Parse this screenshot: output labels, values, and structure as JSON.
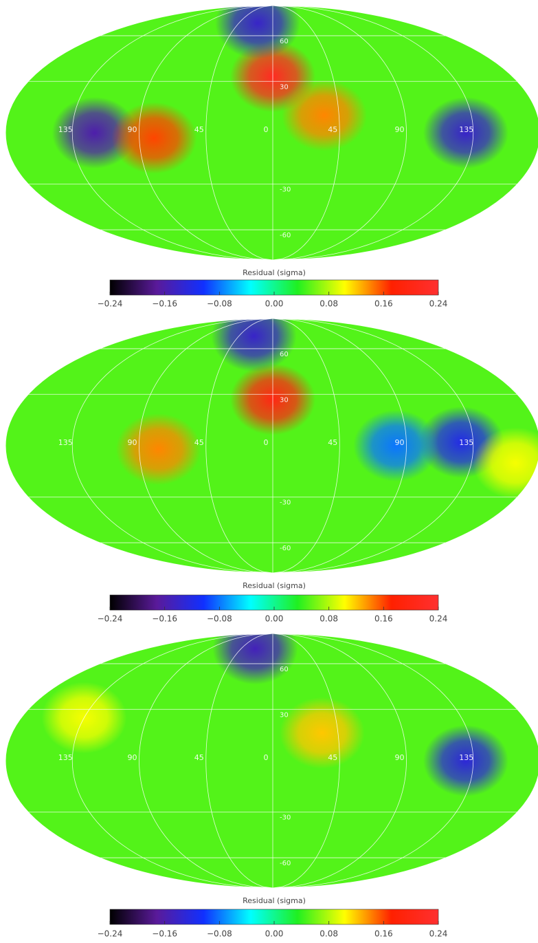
{
  "chart_data": [
    {
      "type": "skymap",
      "grid": true,
      "background": 0.05,
      "xlim": [
        180,
        -180
      ],
      "ylim": [
        -90,
        90
      ],
      "xticks": [
        135,
        90,
        45,
        0,
        {
          "value": -45,
          "label": "45"
        },
        {
          "value": -90,
          "label": "90"
        },
        {
          "value": -135,
          "label": "135"
        }
      ],
      "yticks": [
        60,
        30,
        -30,
        -60
      ],
      "features": [
        {
          "lon": 120,
          "lat": 0,
          "value": -0.16
        },
        {
          "lon": 80,
          "lat": -3,
          "value": 0.16
        },
        {
          "lon": 0,
          "lat": 33,
          "value": 0.22
        },
        {
          "lon": -35,
          "lat": 10,
          "value": 0.14
        },
        {
          "lon": 20,
          "lat": 70,
          "value": -0.14
        },
        {
          "lon": -130,
          "lat": 0,
          "value": -0.14
        }
      ],
      "colorbar": {
        "label": "Residual (sigma)",
        "lim": [
          -0.24,
          0.24
        ],
        "ticks": [
          {
            "value": -0.24,
            "label": "−0.24"
          },
          {
            "value": -0.16,
            "label": "−0.16"
          },
          {
            "value": -0.08,
            "label": "−0.08"
          },
          {
            "value": 0,
            "label": "0.00"
          },
          0.08,
          0.16,
          0.24
        ],
        "colormap": [
          "#000000",
          "#5a1a9a",
          "#1030ff",
          "#00ffff",
          "#20f020",
          "#ffff00",
          "#ff2000",
          "#ff3030"
        ]
      }
    },
    {
      "type": "skymap",
      "grid": true,
      "background": 0.05,
      "xlim": [
        180,
        -180
      ],
      "ylim": [
        -90,
        90
      ],
      "xticks": [
        135,
        90,
        45,
        0,
        {
          "value": -45,
          "label": "45"
        },
        {
          "value": -90,
          "label": "90"
        },
        {
          "value": -135,
          "label": "135"
        }
      ],
      "yticks": [
        60,
        30,
        -30,
        -60
      ],
      "features": [
        {
          "lon": 0,
          "lat": 27,
          "value": 0.2
        },
        {
          "lon": 77,
          "lat": -2,
          "value": 0.14
        },
        {
          "lon": 25,
          "lat": 70,
          "value": -0.14
        },
        {
          "lon": -127,
          "lat": 2,
          "value": -0.12
        },
        {
          "lon": -83,
          "lat": 0,
          "value": -0.08
        },
        {
          "lon": -165,
          "lat": -10,
          "value": 0.1
        }
      ],
      "colorbar": {
        "label": "Residual (sigma)",
        "lim": [
          -0.24,
          0.24
        ],
        "ticks": [
          {
            "value": -0.24,
            "label": "−0.24"
          },
          {
            "value": -0.16,
            "label": "−0.16"
          },
          {
            "value": -0.08,
            "label": "−0.08"
          },
          {
            "value": 0,
            "label": "0.00"
          },
          0.08,
          0.16,
          0.24
        ],
        "colormap": [
          "#000000",
          "#5a1a9a",
          "#1030ff",
          "#00ffff",
          "#20f020",
          "#ffff00",
          "#ff2000",
          "#ff3030"
        ]
      }
    },
    {
      "type": "skymap",
      "grid": true,
      "background": 0.05,
      "xlim": [
        180,
        -180
      ],
      "ylim": [
        -90,
        90
      ],
      "xticks": [
        135,
        90,
        45,
        0,
        {
          "value": -45,
          "label": "45"
        },
        {
          "value": -90,
          "label": "90"
        },
        {
          "value": -135,
          "label": "135"
        }
      ],
      "yticks": [
        60,
        30,
        -30,
        -60
      ],
      "features": [
        {
          "lon": 25,
          "lat": 72,
          "value": -0.15
        },
        {
          "lon": -34,
          "lat": 16,
          "value": 0.12
        },
        {
          "lon": -130,
          "lat": 0,
          "value": -0.13
        },
        {
          "lon": 135,
          "lat": 25,
          "value": 0.1
        }
      ],
      "colorbar": {
        "label": "Residual (sigma)",
        "lim": [
          -0.24,
          0.24
        ],
        "ticks": [
          {
            "value": -0.24,
            "label": "−0.24"
          },
          {
            "value": -0.16,
            "label": "−0.16"
          },
          {
            "value": -0.08,
            "label": "−0.08"
          },
          {
            "value": 0,
            "label": "0.00"
          },
          0.08,
          0.16,
          0.24
        ],
        "colormap": [
          "#000000",
          "#5a1a9a",
          "#1030ff",
          "#00ffff",
          "#20f020",
          "#ffff00",
          "#ff2000",
          "#ff3030"
        ]
      }
    }
  ]
}
